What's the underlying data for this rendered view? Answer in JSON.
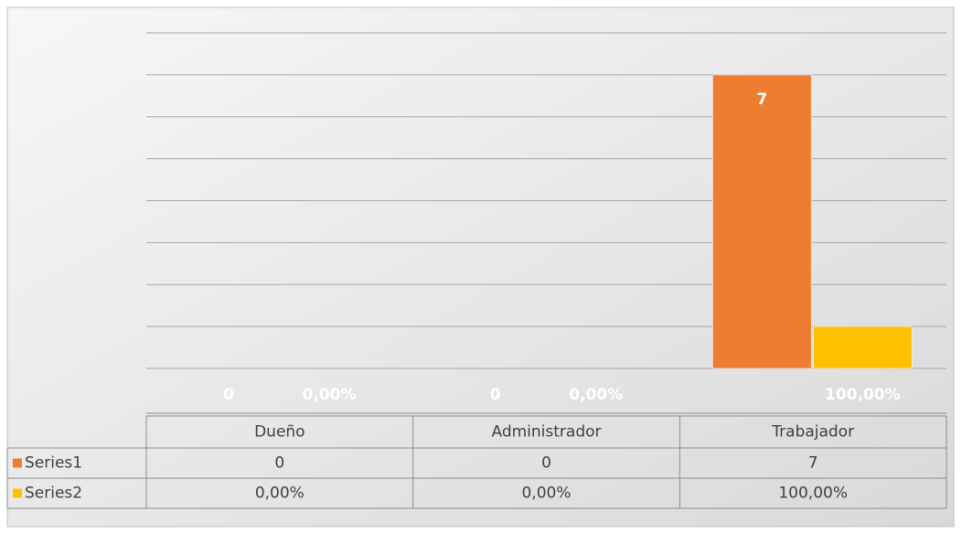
{
  "chart_data": {
    "type": "bar",
    "categories": [
      "Dueño",
      "Administrador",
      "Trabajador"
    ],
    "series": [
      {
        "name": "Series1",
        "color": "#ED7D31",
        "values": [
          0,
          0,
          7
        ]
      },
      {
        "name": "Series2",
        "color": "#FFC000",
        "values": [
          0,
          0,
          1
        ],
        "value_labels": [
          "0,00%",
          "0,00%",
          "100,00%"
        ]
      }
    ],
    "ylim": [
      0,
      8
    ],
    "yticks": [
      0,
      1,
      2,
      3,
      4,
      5,
      6,
      7,
      8
    ],
    "grid": true,
    "data_table": true
  }
}
